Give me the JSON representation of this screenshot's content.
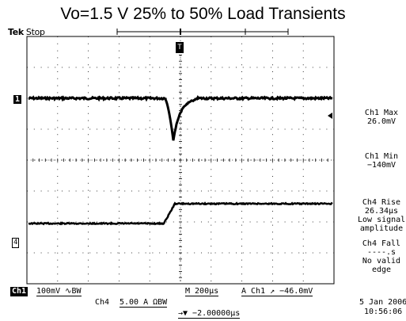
{
  "title": "Vo=1.5 V 25% to 50% Load Transients",
  "brand": "Tek",
  "acquisition_status": "Stop",
  "channel_markers": {
    "ch1": "1",
    "ch4": "4"
  },
  "trigger_marker": "T",
  "measurements": [
    {
      "lines": [
        "Ch1 Max",
        "26.0mV"
      ]
    },
    {
      "lines": [
        "Ch1 Min",
        "−140mV"
      ]
    },
    {
      "lines": [
        "Ch4 Rise",
        "26.34µs",
        "Low signal",
        "amplitude"
      ]
    },
    {
      "lines": [
        "Ch4 Fall",
        "----.s",
        "No valid",
        "edge"
      ]
    }
  ],
  "bottom": {
    "ch1_label": "Ch1",
    "ch1_scale": "100mV ∿BW",
    "timebase": "M 200µs",
    "trigger": "A  Ch1  ↗ −46.0mV",
    "ch4_label": "Ch4",
    "ch4_scale": "5.00 A ΩBW",
    "position": "→▼ −2.00000µs",
    "date": "5 Jan  2006",
    "time": "10:56:06"
  },
  "colors": {
    "trace": "#000000",
    "grid": "#000000",
    "background": "#ffffff"
  }
}
